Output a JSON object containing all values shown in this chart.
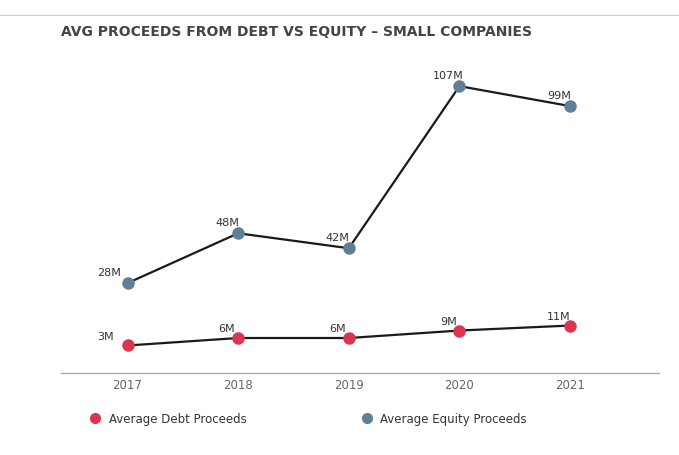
{
  "title": "AVG PROCEEDS FROM DEBT VS EQUITY – SMALL COMPANIES",
  "years": [
    2017,
    2018,
    2019,
    2020,
    2021
  ],
  "debt_values": [
    3,
    6,
    6,
    9,
    11
  ],
  "equity_values": [
    28,
    48,
    42,
    107,
    99
  ],
  "debt_labels": [
    "3M",
    "6M",
    "6M",
    "9M",
    "11M"
  ],
  "equity_labels": [
    "28M",
    "48M",
    "42M",
    "107M",
    "99M"
  ],
  "debt_color": "#d93651",
  "equity_color": "#5e7f95",
  "line_color": "#1a1a1a",
  "background_color": "#ffffff",
  "legend_bg_color": "#e5e5e5",
  "top_line_color": "#cccccc",
  "legend_debt_label": "Average Debt Proceeds",
  "legend_equity_label": "Average Equity Proceeds",
  "title_fontsize": 10,
  "label_fontsize": 8,
  "legend_fontsize": 8.5,
  "tick_fontsize": 8.5,
  "marker_size": 9,
  "ylim": [
    -8,
    120
  ],
  "xlim": [
    2016.4,
    2021.8
  ]
}
